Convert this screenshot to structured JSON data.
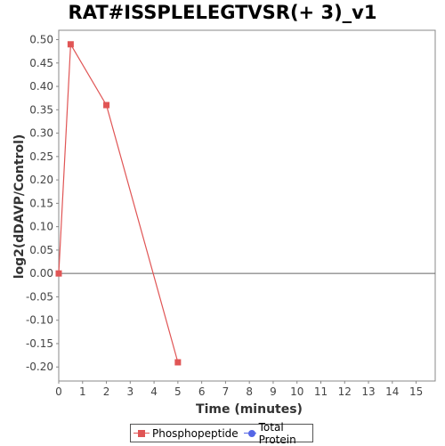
{
  "chart_data": {
    "type": "line",
    "title": "RAT#ISSPLELEGTVSR(+ 3)_v1",
    "xlabel": "Time (minutes)",
    "ylabel": "log2(dDAVP/Control)",
    "xlim": [
      0,
      15.8
    ],
    "ylim": [
      -0.23,
      0.52
    ],
    "xticks": [
      "0",
      "1",
      "2",
      "3",
      "4",
      "5",
      "6",
      "7",
      "8",
      "9",
      "10",
      "11",
      "12",
      "13",
      "14",
      "15"
    ],
    "yticks": [
      "0.50",
      "0.45",
      "0.40",
      "0.35",
      "0.30",
      "0.25",
      "0.20",
      "0.15",
      "0.10",
      "0.05",
      "0.00",
      "-0.05",
      "-0.10",
      "-0.15",
      "-0.20"
    ],
    "zero_line": true,
    "grid": false,
    "legend_position": "bottom",
    "series": [
      {
        "name": "Phosphopeptide",
        "color": "#e05555",
        "marker": "square",
        "x": [
          0,
          0.5,
          2,
          5
        ],
        "y": [
          0.0,
          0.49,
          0.36,
          -0.19
        ]
      },
      {
        "name": "Total Protein",
        "color": "#5566e6",
        "marker": "circle",
        "x": [],
        "y": []
      }
    ]
  }
}
